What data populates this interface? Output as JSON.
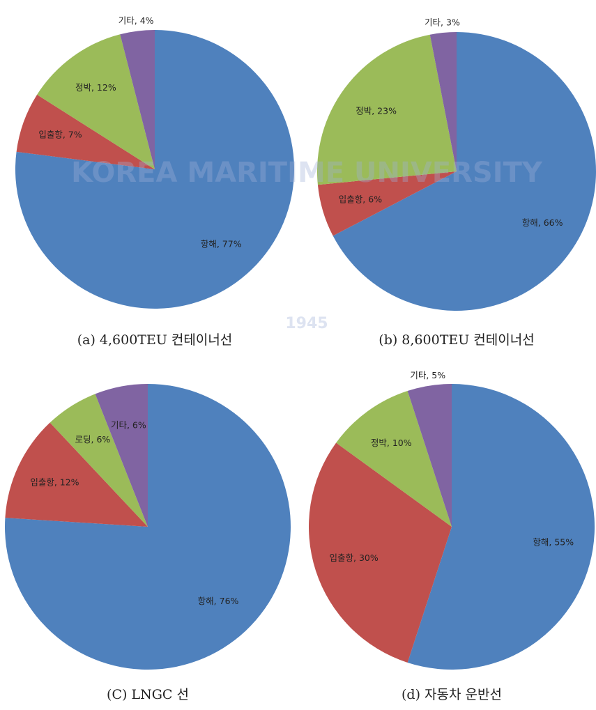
{
  "chart_data": [
    {
      "type": "pie",
      "caption": "(a) 4,600TEU 컨테이너선",
      "categories": [
        "항해",
        "입출항",
        "정박",
        "기타"
      ],
      "values": [
        77,
        7,
        12,
        4
      ],
      "value_labels": [
        "항해, 77%",
        "입출항, 7%",
        "정박, 12%",
        "기타, 4%"
      ],
      "colors": [
        "#4f81bd",
        "#c0504d",
        "#9bbb59",
        "#8064a2"
      ]
    },
    {
      "type": "pie",
      "caption": "(b) 8,600TEU 컨테이너선",
      "categories": [
        "항해",
        "입출항",
        "정박",
        "기타"
      ],
      "values": [
        66,
        6,
        23,
        3
      ],
      "value_labels": [
        "항해, 66%",
        "입출항, 6%",
        "정박, 23%",
        "기타, 3%"
      ],
      "colors": [
        "#4f81bd",
        "#c0504d",
        "#9bbb59",
        "#8064a2"
      ]
    },
    {
      "type": "pie",
      "caption": "(C) LNGC 선",
      "categories": [
        "항해",
        "입출항",
        "로딩",
        "기타"
      ],
      "values": [
        76,
        12,
        6,
        6
      ],
      "value_labels": [
        "항해, 76%",
        "입출항, 12%",
        "로딩, 6%",
        "기타, 6%"
      ],
      "colors": [
        "#4f81bd",
        "#c0504d",
        "#9bbb59",
        "#8064a2"
      ]
    },
    {
      "type": "pie",
      "caption": "(d) 자동차 운반선",
      "categories": [
        "항해",
        "입출항",
        "정박",
        "기타"
      ],
      "values": [
        55,
        30,
        10,
        5
      ],
      "value_labels": [
        "항해, 55%",
        "입출항, 30%",
        "정박, 10%",
        "기타, 5%"
      ],
      "colors": [
        "#4f81bd",
        "#c0504d",
        "#9bbb59",
        "#8064a2"
      ]
    }
  ],
  "watermark": {
    "text": "KOREA MARITIME UNIVERSITY",
    "year": "1945"
  }
}
